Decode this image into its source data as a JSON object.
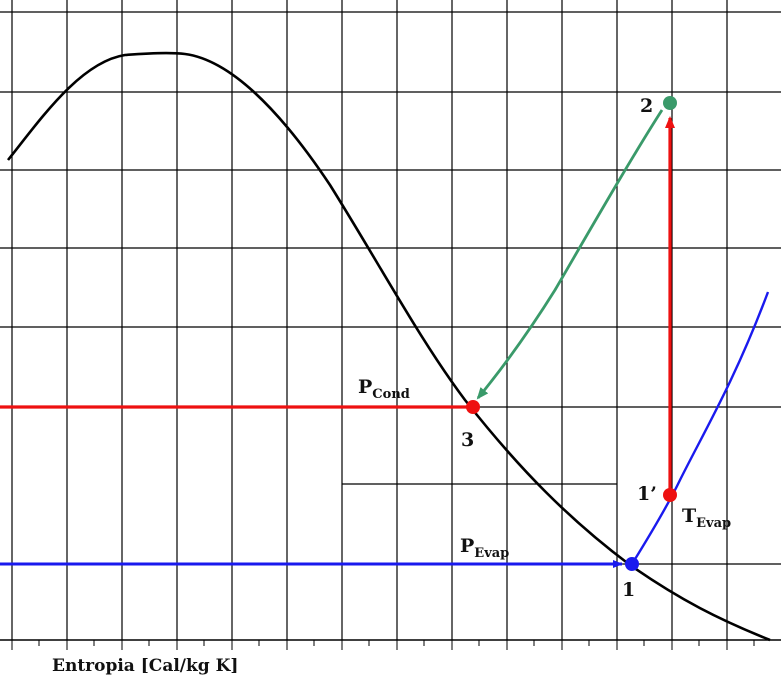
{
  "axis": {
    "xlabel": "Entropia [Cal/kg K]"
  },
  "labels": {
    "p_cond_main": "P",
    "p_cond_sub": "Cond",
    "p_evap_main": "P",
    "p_evap_sub": "Evap",
    "t_evap_main": "T",
    "t_evap_sub": "Evap",
    "point_1": "1",
    "point_1_prime": "1’",
    "point_2": "2",
    "point_3": "3"
  },
  "colors": {
    "saturation_curve": "#000000",
    "condensation_line": "#ee1111",
    "evaporation_line": "#1a1aee",
    "compression_line": "#ee1111",
    "return_line": "#3a9a6a",
    "grid": "#000000"
  }
}
